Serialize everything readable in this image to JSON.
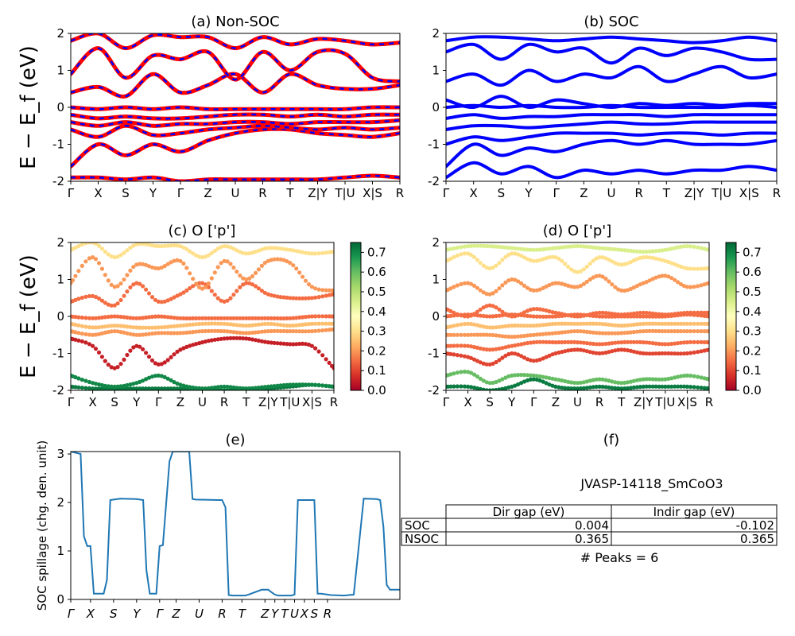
{
  "figure": {
    "y_label_main": "E − E_f (eV)",
    "panels": {
      "a": {
        "title": "(a) Non-SOC"
      },
      "b": {
        "title": "(b) SOC"
      },
      "c": {
        "title": "(c)  O ['p']"
      },
      "d": {
        "title": "(d) O ['p']"
      },
      "e": {
        "title": "(e)",
        "ylabel": "SOC spillage (chg. den. unit)"
      },
      "f": {
        "title": "(f)"
      }
    },
    "kpath_labels": [
      "Γ",
      "X",
      "S",
      "Y",
      "Γ",
      "Z",
      "U",
      "R",
      "T",
      "Z|Y",
      "T|U",
      "X|S",
      "R"
    ],
    "spillage_kpath_labels": [
      "Γ",
      "X",
      "S",
      "Y",
      "Γ",
      "Z",
      "U",
      "R",
      "T",
      "Z",
      "Y",
      "T",
      "U",
      "X",
      "S",
      "R"
    ],
    "colorbar_ticks": [
      "0.7",
      "0.6",
      "0.5",
      "0.4",
      "0.3",
      "0.2",
      "0.1",
      "0.0"
    ]
  },
  "info": {
    "material": "JVASP-14118_SmCoO3",
    "table": {
      "headers": [
        "",
        "Dir gap (eV)",
        "Indir gap (eV)"
      ],
      "rows": [
        [
          "SOC",
          "0.004",
          "-0.102"
        ],
        [
          "NSOC",
          "0.365",
          "0.365"
        ]
      ]
    },
    "peaks": "# Peaks = 6"
  },
  "colors": {
    "nonsoc_primary": "#ff0000",
    "nonsoc_dash": "#0000ff",
    "soc": "#0000ff",
    "spillage_line": "#1f77b4",
    "colormap": [
      "#a50026",
      "#d73027",
      "#f46d43",
      "#fdae61",
      "#fee08b",
      "#ffffbf",
      "#d9ef8b",
      "#a6d96a",
      "#66bd63",
      "#1a9850",
      "#006837"
    ]
  },
  "chart_data": [
    {
      "panel": "a",
      "type": "line",
      "title": "(a) Non-SOC",
      "ylabel": "E − E_f (eV)",
      "xtick_labels": [
        "Γ",
        "X",
        "S",
        "Y",
        "Γ",
        "Z",
        "U",
        "R",
        "T",
        "Z|Y",
        "T|U",
        "X|S",
        "R"
      ],
      "ylim": [
        -2,
        2
      ],
      "yticks": [
        -2,
        -1,
        0,
        1,
        2
      ],
      "x": [
        0,
        1,
        2,
        3,
        4,
        5,
        6,
        7,
        8,
        9,
        10,
        11,
        12
      ],
      "series": [
        {
          "values": [
            -1.9,
            -1.9,
            -1.95,
            -1.9,
            -2.0,
            -1.95,
            -1.95,
            -1.95,
            -1.95,
            -1.95,
            -1.9,
            -1.85,
            -1.9
          ]
        },
        {
          "values": [
            -1.6,
            -1.0,
            -1.3,
            -1.0,
            -1.2,
            -0.9,
            -0.7,
            -0.6,
            -0.6,
            -0.7,
            -0.75,
            -0.8,
            -0.7
          ]
        },
        {
          "values": [
            -0.6,
            -0.8,
            -0.5,
            -0.75,
            -0.7,
            -0.6,
            -0.55,
            -0.5,
            -0.55,
            -0.6,
            -0.55,
            -0.6,
            -0.55
          ]
        },
        {
          "values": [
            -0.4,
            -0.5,
            -0.4,
            -0.5,
            -0.45,
            -0.45,
            -0.4,
            -0.4,
            -0.45,
            -0.4,
            -0.4,
            -0.4,
            -0.35
          ]
        },
        {
          "values": [
            -0.2,
            -0.3,
            -0.25,
            -0.3,
            -0.3,
            -0.25,
            -0.2,
            -0.2,
            -0.25,
            -0.2,
            -0.25,
            -0.2,
            -0.2
          ]
        },
        {
          "values": [
            0.0,
            -0.05,
            0.0,
            -0.05,
            0.0,
            -0.05,
            -0.05,
            -0.05,
            -0.05,
            -0.05,
            -0.05,
            0.0,
            0.0
          ]
        },
        {
          "values": [
            0.4,
            0.55,
            0.3,
            0.9,
            0.4,
            0.6,
            0.9,
            0.4,
            0.9,
            0.6,
            0.5,
            0.5,
            0.6
          ]
        },
        {
          "values": [
            0.9,
            1.6,
            0.8,
            1.4,
            1.3,
            1.5,
            0.75,
            1.5,
            1.0,
            1.5,
            1.45,
            0.8,
            0.7
          ]
        },
        {
          "values": [
            1.8,
            2.0,
            1.6,
            1.95,
            1.9,
            1.9,
            1.6,
            1.9,
            1.7,
            1.85,
            1.8,
            1.7,
            1.75
          ]
        }
      ]
    },
    {
      "panel": "b",
      "type": "line",
      "title": "(b) SOC",
      "ylabel": "",
      "xtick_labels": [
        "Γ",
        "X",
        "S",
        "Y",
        "Γ",
        "Z",
        "U",
        "R",
        "T",
        "Z|Y",
        "T|U",
        "X|S",
        "R"
      ],
      "ylim": [
        -2,
        2
      ],
      "yticks": [
        -2,
        -1,
        0,
        1,
        2
      ],
      "x": [
        0,
        1,
        2,
        3,
        4,
        5,
        6,
        7,
        8,
        9,
        10,
        11,
        12
      ],
      "series": [
        {
          "values": [
            -1.9,
            -1.5,
            -1.8,
            -1.6,
            -1.9,
            -1.7,
            -1.8,
            -1.7,
            -1.8,
            -1.7,
            -1.7,
            -1.6,
            -1.7
          ]
        },
        {
          "values": [
            -1.6,
            -1.0,
            -1.3,
            -1.1,
            -1.2,
            -1.0,
            -0.9,
            -1.0,
            -0.9,
            -1.0,
            -1.0,
            -1.0,
            -0.9
          ]
        },
        {
          "values": [
            -1.0,
            -0.8,
            -0.9,
            -0.8,
            -0.7,
            -0.7,
            -0.7,
            -0.75,
            -0.7,
            -0.7,
            -0.75,
            -0.7,
            -0.7
          ]
        },
        {
          "values": [
            -0.6,
            -0.5,
            -0.5,
            -0.55,
            -0.5,
            -0.45,
            -0.4,
            -0.45,
            -0.45,
            -0.4,
            -0.4,
            -0.4,
            -0.4
          ]
        },
        {
          "values": [
            -0.3,
            -0.2,
            -0.3,
            -0.25,
            -0.25,
            -0.2,
            -0.2,
            -0.2,
            -0.25,
            -0.2,
            -0.2,
            -0.2,
            -0.2
          ]
        },
        {
          "values": [
            0.0,
            0.05,
            0.0,
            0.05,
            0.0,
            0.0,
            0.05,
            0.0,
            0.0,
            0.0,
            0.0,
            0.05,
            0.0
          ]
        },
        {
          "values": [
            0.2,
            0.0,
            0.3,
            0.0,
            0.2,
            0.1,
            0.0,
            0.1,
            0.05,
            0.1,
            0.05,
            0.1,
            0.1
          ]
        },
        {
          "values": [
            0.7,
            0.9,
            0.6,
            1.0,
            0.7,
            0.9,
            0.8,
            1.1,
            0.7,
            0.9,
            1.1,
            0.8,
            0.9
          ]
        },
        {
          "values": [
            1.5,
            1.7,
            1.3,
            1.7,
            1.5,
            1.6,
            1.2,
            1.6,
            1.4,
            1.6,
            1.5,
            1.3,
            1.3
          ]
        },
        {
          "values": [
            1.8,
            1.9,
            1.9,
            1.85,
            1.8,
            1.85,
            1.9,
            1.85,
            1.8,
            1.75,
            1.8,
            1.9,
            1.8
          ]
        }
      ]
    },
    {
      "panel": "c",
      "type": "scatter",
      "title": "(c)  O ['p']",
      "ylabel": "E − E_f (eV)",
      "xtick_labels": [
        "Γ",
        "X",
        "S",
        "Y",
        "Γ",
        "Z",
        "U",
        "R",
        "T",
        "Z|Y",
        "T|U",
        "X|S",
        "R"
      ],
      "ylim": [
        -2,
        2
      ],
      "yticks": [
        -2,
        -1,
        0,
        1,
        2
      ],
      "colorbar": {
        "min": 0.0,
        "max": 0.75,
        "ticks": [
          0.0,
          0.1,
          0.2,
          0.3,
          0.4,
          0.5,
          0.6,
          0.7
        ],
        "colormap": "RdYlGn"
      },
      "x": [
        0,
        1,
        2,
        3,
        4,
        5,
        6,
        7,
        8,
        9,
        10,
        11,
        12
      ],
      "bands": [
        {
          "values": [
            -1.9,
            -1.95,
            -1.95,
            -1.95,
            -1.95,
            -1.95,
            -1.95,
            -2.0,
            -1.95,
            -1.95,
            -1.9,
            -1.85,
            -1.9
          ],
          "weight": 0.72
        },
        {
          "values": [
            -1.6,
            -1.8,
            -1.9,
            -1.8,
            -1.6,
            -1.85,
            -1.95,
            -1.9,
            -1.95,
            -1.9,
            -1.85,
            -1.85,
            -1.9
          ],
          "weight": 0.7
        },
        {
          "values": [
            -0.6,
            -0.8,
            -1.4,
            -0.8,
            -1.3,
            -0.9,
            -0.7,
            -0.6,
            -0.6,
            -0.7,
            -0.75,
            -0.8,
            -1.4
          ],
          "weight": 0.05
        },
        {
          "values": [
            -0.4,
            -0.5,
            -0.4,
            -0.5,
            -0.45,
            -0.45,
            -0.4,
            -0.4,
            -0.45,
            -0.4,
            -0.4,
            -0.4,
            -0.35
          ],
          "weight": 0.2
        },
        {
          "values": [
            -0.2,
            -0.3,
            -0.25,
            -0.3,
            -0.3,
            -0.25,
            -0.2,
            -0.2,
            -0.25,
            -0.2,
            -0.25,
            -0.2,
            -0.2
          ],
          "weight": 0.25
        },
        {
          "values": [
            0.0,
            -0.05,
            0.0,
            -0.05,
            0.0,
            -0.05,
            -0.05,
            -0.05,
            -0.05,
            -0.05,
            -0.05,
            0.0,
            0.0
          ],
          "weight": 0.15
        },
        {
          "values": [
            0.4,
            0.55,
            0.3,
            0.9,
            0.4,
            0.6,
            0.9,
            0.4,
            0.9,
            0.6,
            0.5,
            0.5,
            0.6
          ],
          "weight": 0.15
        },
        {
          "values": [
            0.9,
            1.6,
            0.8,
            1.4,
            1.3,
            1.5,
            0.75,
            1.5,
            1.0,
            1.5,
            1.45,
            0.8,
            0.7
          ],
          "weight": 0.2
        },
        {
          "values": [
            1.8,
            2.0,
            1.6,
            1.95,
            1.9,
            1.9,
            1.6,
            1.9,
            1.7,
            1.85,
            1.8,
            1.7,
            1.75
          ],
          "weight": 0.3
        }
      ]
    },
    {
      "panel": "d",
      "type": "scatter",
      "title": "(d) O ['p']",
      "ylabel": "",
      "xtick_labels": [
        "Γ",
        "X",
        "S",
        "Y",
        "Γ",
        "Z",
        "U",
        "R",
        "T",
        "Z|Y",
        "T|U",
        "X|S",
        "R"
      ],
      "ylim": [
        -2,
        2
      ],
      "yticks": [
        -2,
        -1,
        0,
        1,
        2
      ],
      "colorbar": {
        "min": 0.0,
        "max": 0.75,
        "ticks": [
          0.0,
          0.1,
          0.2,
          0.3,
          0.4,
          0.5,
          0.6,
          0.7
        ],
        "colormap": "RdYlGn"
      },
      "x": [
        0,
        1,
        2,
        3,
        4,
        5,
        6,
        7,
        8,
        9,
        10,
        11,
        12
      ],
      "bands": [
        {
          "values": [
            -1.9,
            -1.9,
            -2.0,
            -1.9,
            -1.7,
            -1.9,
            -1.95,
            -1.9,
            -1.95,
            -1.9,
            -1.9,
            -1.9,
            -1.95
          ],
          "weight": 0.72
        },
        {
          "values": [
            -1.6,
            -1.5,
            -1.8,
            -1.6,
            -1.6,
            -1.7,
            -1.8,
            -1.7,
            -1.8,
            -1.7,
            -1.7,
            -1.6,
            -1.7
          ],
          "weight": 0.6
        },
        {
          "values": [
            -1.0,
            -1.1,
            -1.3,
            -1.0,
            -1.2,
            -1.0,
            -0.9,
            -1.0,
            -0.9,
            -1.0,
            -1.0,
            -1.0,
            -0.9
          ],
          "weight": 0.1
        },
        {
          "values": [
            -0.8,
            -0.8,
            -0.9,
            -0.8,
            -0.7,
            -0.7,
            -0.7,
            -0.75,
            -0.7,
            -0.7,
            -0.75,
            -0.7,
            -0.7
          ],
          "weight": 0.15
        },
        {
          "values": [
            -0.5,
            -0.5,
            -0.5,
            -0.55,
            -0.5,
            -0.45,
            -0.4,
            -0.45,
            -0.45,
            -0.4,
            -0.4,
            -0.4,
            -0.4
          ],
          "weight": 0.2
        },
        {
          "values": [
            -0.3,
            -0.2,
            -0.3,
            -0.25,
            -0.25,
            -0.2,
            -0.2,
            -0.2,
            -0.25,
            -0.2,
            -0.2,
            -0.2,
            -0.2
          ],
          "weight": 0.25
        },
        {
          "values": [
            0.0,
            0.05,
            0.0,
            0.05,
            0.0,
            0.0,
            0.05,
            0.0,
            0.0,
            0.0,
            0.0,
            0.05,
            0.0
          ],
          "weight": 0.15
        },
        {
          "values": [
            0.2,
            0.0,
            0.3,
            0.0,
            0.2,
            0.1,
            0.0,
            0.1,
            0.05,
            0.1,
            0.05,
            0.1,
            0.1
          ],
          "weight": 0.15
        },
        {
          "values": [
            0.7,
            0.9,
            0.6,
            1.0,
            0.7,
            0.9,
            0.8,
            1.1,
            0.7,
            0.9,
            1.1,
            0.8,
            0.9
          ],
          "weight": 0.2
        },
        {
          "values": [
            1.5,
            1.7,
            1.3,
            1.7,
            1.5,
            1.6,
            1.2,
            1.6,
            1.4,
            1.6,
            1.5,
            1.3,
            1.3
          ],
          "weight": 0.3
        },
        {
          "values": [
            1.8,
            1.9,
            1.9,
            1.85,
            1.8,
            1.85,
            1.9,
            1.85,
            1.8,
            1.75,
            1.8,
            1.9,
            1.8
          ],
          "weight": 0.45
        }
      ]
    },
    {
      "panel": "e",
      "type": "line",
      "title": "(e)",
      "ylabel": "SOC spillage (chg. den. unit)",
      "xtick_labels": [
        "Γ",
        "X",
        "S",
        "Y",
        "Γ",
        "Z",
        "U",
        "R",
        "T",
        "Z",
        "Y",
        "T",
        "U",
        "X",
        "S",
        "R"
      ],
      "ylim": [
        0,
        3.05
      ],
      "yticks": [
        0,
        1,
        2,
        3
      ],
      "xlim": [
        0,
        100
      ],
      "x": [
        0,
        3,
        4,
        5,
        6,
        7,
        10,
        11,
        12,
        15,
        20,
        22,
        23,
        24,
        25,
        26,
        27,
        28,
        30,
        31,
        32,
        33,
        36,
        37,
        38,
        45,
        46,
        47,
        48,
        49,
        52,
        53,
        54,
        58,
        59,
        60,
        61,
        62,
        63,
        64,
        67,
        68,
        69,
        70,
        74,
        75,
        76,
        78,
        79,
        83,
        86,
        89,
        93,
        94,
        95,
        96,
        97,
        99,
        100
      ],
      "series": [
        {
          "name": "spillage",
          "values": [
            3.05,
            3.0,
            1.3,
            1.1,
            1.1,
            0.12,
            0.12,
            0.4,
            2.05,
            2.08,
            2.07,
            2.05,
            0.6,
            0.12,
            0.12,
            0.12,
            1.1,
            1.12,
            2.85,
            3.05,
            3.05,
            3.05,
            3.05,
            2.07,
            2.06,
            2.05,
            2.05,
            1.9,
            0.09,
            0.08,
            0.08,
            0.08,
            0.1,
            0.2,
            0.2,
            0.2,
            0.15,
            0.1,
            0.08,
            0.08,
            0.08,
            0.1,
            2.05,
            2.05,
            2.05,
            0.12,
            0.12,
            0.1,
            0.09,
            0.08,
            0.1,
            2.08,
            2.07,
            2.05,
            1.5,
            0.3,
            0.2,
            0.2,
            0.2
          ]
        }
      ]
    }
  ]
}
